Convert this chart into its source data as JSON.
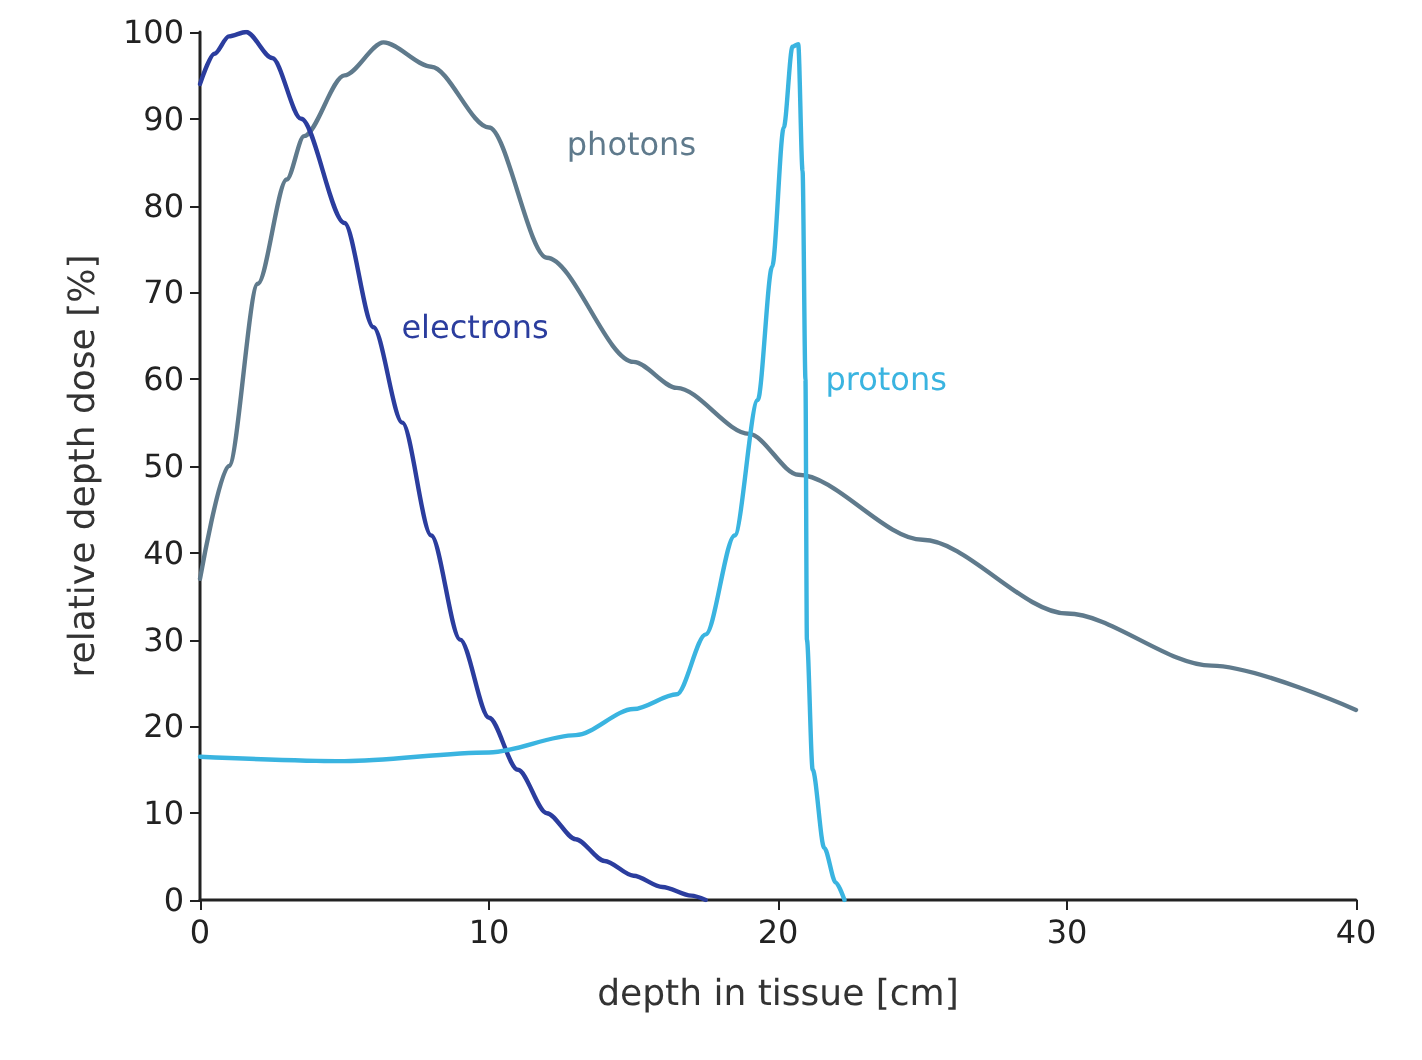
{
  "chart_data": {
    "type": "line",
    "xlabel": "depth in tissue [cm]",
    "ylabel": "relative depth dose [%]",
    "xlim": [
      0,
      40
    ],
    "xticks": [
      0,
      10,
      20,
      30,
      40
    ],
    "ylim": [
      0,
      100
    ],
    "yticks": [
      0,
      10,
      20,
      30,
      40,
      50,
      60,
      70,
      80,
      90,
      100
    ],
    "grid": false,
    "legend": false,
    "marker": "none",
    "line_style": "solid",
    "series": [
      {
        "name": "photons",
        "color": "#5f7a8c",
        "x": [
          0,
          1,
          2,
          3,
          3.6,
          5,
          6.35,
          8,
          10,
          12,
          15,
          16.5,
          19,
          20.7,
          25,
          30,
          35,
          40
        ],
        "values": [
          37,
          50,
          71,
          83,
          88,
          95,
          98.8,
          96,
          89,
          74,
          62,
          59,
          53.7,
          49,
          41.5,
          33,
          27,
          21.9
        ]
      },
      {
        "name": "electrons",
        "color": "#2b3d9e",
        "x": [
          0,
          0.5,
          1,
          1.6,
          2.5,
          3.5,
          5,
          6,
          7,
          8,
          9,
          10,
          11,
          12,
          13,
          14,
          15,
          16,
          17,
          17.5
        ],
        "values": [
          94,
          97.5,
          99.5,
          100,
          97,
          90,
          78,
          66,
          55,
          42,
          30,
          21,
          15,
          10,
          7,
          4.5,
          2.8,
          1.5,
          0.5,
          0
        ]
      },
      {
        "name": "protons",
        "color": "#3ab4e0",
        "x": [
          0,
          5,
          10,
          13,
          15,
          16.5,
          17.5,
          18.5,
          19.3,
          19.8,
          20.2,
          20.5,
          20.7,
          20.85,
          20.95,
          21,
          21.2,
          21.6,
          22,
          22.3
        ],
        "values": [
          16.5,
          16,
          17,
          19,
          22,
          23.7,
          30.6,
          42,
          57.6,
          73,
          89,
          98.3,
          98.6,
          84,
          60,
          30,
          15,
          6,
          2,
          0
        ]
      }
    ]
  }
}
